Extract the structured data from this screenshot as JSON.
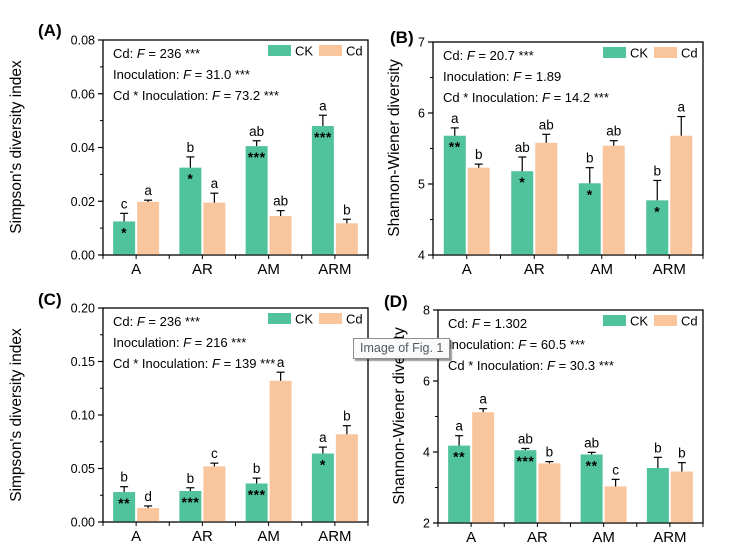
{
  "tooltip": {
    "text": "Image of Fig. 1"
  },
  "colors": {
    "ck": "#50C29C",
    "cd": "#F9C59D",
    "axis": "#000000"
  },
  "legend": {
    "ck": "CK",
    "cd": "Cd"
  },
  "chart_data": [
    {
      "panel_label": "(A)",
      "type": "bar",
      "ylabel": "Simpson's diversity index",
      "xlabel": "",
      "ylim": [
        0,
        0.08
      ],
      "yticks": [
        0,
        0.02,
        0.04,
        0.06,
        0.08
      ],
      "ytick_labels": [
        "0.00",
        "0.02",
        "0.04",
        "0.06",
        "0.08"
      ],
      "categories": [
        "A",
        "AR",
        "AM",
        "ARM"
      ],
      "legend_position": "top-right",
      "grid": false,
      "stats": [
        {
          "label": "Cd",
          "value": "236",
          "stars": "***"
        },
        {
          "label": "Inoculation",
          "value": "31.0",
          "stars": "***"
        },
        {
          "label": "Cd * Inoculation",
          "value": "73.2",
          "stars": "***"
        }
      ],
      "series": [
        {
          "name": "CK",
          "color_key": "ck",
          "values": [
            0.0125,
            0.0325,
            0.0405,
            0.048
          ],
          "errors": [
            0.003,
            0.004,
            0.002,
            0.004
          ],
          "letters": [
            "c",
            "b",
            "ab",
            "a"
          ],
          "stars": [
            "*",
            "*",
            "***",
            "***"
          ]
        },
        {
          "name": "Cd",
          "color_key": "cd",
          "values": [
            0.0198,
            0.0195,
            0.0145,
            0.0118
          ],
          "errors": [
            0.0006,
            0.0035,
            0.002,
            0.0015
          ],
          "letters": [
            "a",
            "a",
            "ab",
            "b"
          ],
          "stars": [
            "",
            "",
            "",
            ""
          ]
        }
      ]
    },
    {
      "panel_label": "(B)",
      "type": "bar",
      "ylabel": "Shannon-Wiener diversity",
      "xlabel": "",
      "ylim": [
        4,
        7
      ],
      "yticks": [
        4,
        5,
        6,
        7
      ],
      "ytick_labels": [
        "4",
        "5",
        "6",
        "7"
      ],
      "categories": [
        "A",
        "AR",
        "AM",
        "ARM"
      ],
      "legend_position": "top-right",
      "grid": false,
      "stats": [
        {
          "label": "Cd",
          "value": "20.7",
          "stars": "***"
        },
        {
          "label": "Inoculation",
          "value": "1.89",
          "stars": ""
        },
        {
          "label": "Cd * Inoculation",
          "value": "14.2",
          "stars": "***"
        }
      ],
      "series": [
        {
          "name": "CK",
          "color_key": "ck",
          "values": [
            5.68,
            5.18,
            5.01,
            4.77
          ],
          "errors": [
            0.11,
            0.2,
            0.22,
            0.28
          ],
          "letters": [
            "a",
            "ab",
            "b",
            "b"
          ],
          "stars": [
            "**",
            "*",
            "*",
            "*"
          ]
        },
        {
          "name": "Cd",
          "color_key": "cd",
          "values": [
            5.23,
            5.58,
            5.54,
            5.68
          ],
          "errors": [
            0.05,
            0.12,
            0.07,
            0.27
          ],
          "letters": [
            "b",
            "ab",
            "ab",
            "a"
          ],
          "stars": [
            "",
            "",
            "",
            ""
          ]
        }
      ]
    },
    {
      "panel_label": "(C)",
      "type": "bar",
      "ylabel": "Simpson's diversity index",
      "xlabel": "",
      "ylim": [
        0,
        0.2
      ],
      "yticks": [
        0,
        0.05,
        0.1,
        0.15,
        0.2
      ],
      "ytick_labels": [
        "0.00",
        "0.05",
        "0.10",
        "0.15",
        "0.20"
      ],
      "categories": [
        "A",
        "AR",
        "AM",
        "ARM"
      ],
      "legend_position": "top-right",
      "grid": false,
      "stats": [
        {
          "label": "Cd",
          "value": "236",
          "stars": "***"
        },
        {
          "label": "Inoculation",
          "value": "216",
          "stars": "***"
        },
        {
          "label": "Cd * Inoculation",
          "value": "139",
          "stars": "***"
        }
      ],
      "series": [
        {
          "name": "CK",
          "color_key": "ck",
          "values": [
            0.028,
            0.029,
            0.036,
            0.064
          ],
          "errors": [
            0.005,
            0.003,
            0.005,
            0.006
          ],
          "letters": [
            "b",
            "b",
            "b",
            "a"
          ],
          "stars": [
            "**",
            "***",
            "***",
            "*"
          ]
        },
        {
          "name": "Cd",
          "color_key": "cd",
          "values": [
            0.013,
            0.052,
            0.132,
            0.082
          ],
          "errors": [
            0.002,
            0.003,
            0.008,
            0.008
          ],
          "letters": [
            "d",
            "c",
            "a",
            "b"
          ],
          "stars": [
            "",
            "",
            "",
            ""
          ]
        }
      ]
    },
    {
      "panel_label": "(D)",
      "type": "bar",
      "ylabel": "Shannon-Wiener diversity",
      "xlabel": "",
      "ylim": [
        2,
        8
      ],
      "yticks": [
        2,
        4,
        6,
        8
      ],
      "ytick_labels": [
        "2",
        "4",
        "6",
        "8"
      ],
      "categories": [
        "A",
        "AR",
        "AM",
        "ARM"
      ],
      "legend_position": "top-right",
      "grid": false,
      "stats": [
        {
          "label": "Cd",
          "value": "1.302",
          "stars": ""
        },
        {
          "label": "Inoculation",
          "value": "60.5",
          "stars": "***"
        },
        {
          "label": "Cd * Inoculation",
          "value": "30.3",
          "stars": "***"
        }
      ],
      "series": [
        {
          "name": "CK",
          "color_key": "ck",
          "values": [
            4.18,
            4.05,
            3.93,
            3.55
          ],
          "errors": [
            0.28,
            0.05,
            0.06,
            0.3
          ],
          "letters": [
            "a",
            "ab",
            "ab",
            "b"
          ],
          "stars": [
            "**",
            "***",
            "**",
            ""
          ]
        },
        {
          "name": "Cd",
          "color_key": "cd",
          "values": [
            5.12,
            3.68,
            3.03,
            3.45
          ],
          "errors": [
            0.1,
            0.05,
            0.2,
            0.25
          ],
          "letters": [
            "a",
            "b",
            "c",
            "b"
          ],
          "stars": [
            "",
            "",
            "",
            ""
          ]
        }
      ]
    }
  ]
}
